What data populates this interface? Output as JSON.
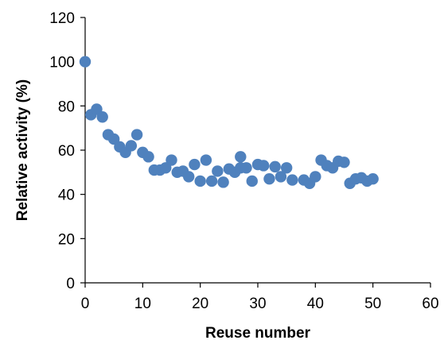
{
  "chart_data": {
    "type": "scatter",
    "title": "",
    "xlabel": "Reuse number",
    "ylabel": "Relative activity (%)",
    "xlim": [
      0,
      60
    ],
    "ylim": [
      0,
      120
    ],
    "x_ticks": [
      "0",
      "10",
      "20",
      "30",
      "40",
      "50",
      "60"
    ],
    "y_ticks": [
      "0",
      "20",
      "40",
      "60",
      "80",
      "100",
      "120"
    ],
    "grid": false,
    "legend": "none",
    "marker_color": "#4f81bd",
    "series": [
      {
        "points": [
          [
            0,
            100
          ],
          [
            1,
            76
          ],
          [
            2,
            78.5
          ],
          [
            3,
            75
          ],
          [
            4,
            67
          ],
          [
            5,
            65
          ],
          [
            6,
            61.5
          ],
          [
            7,
            59
          ],
          [
            8,
            62
          ],
          [
            9,
            67
          ],
          [
            10,
            59
          ],
          [
            11,
            57
          ],
          [
            12,
            51
          ],
          [
            13,
            51
          ],
          [
            14,
            52
          ],
          [
            15,
            55.5
          ],
          [
            16,
            50
          ],
          [
            17,
            50.5
          ],
          [
            18,
            48
          ],
          [
            19,
            53.5
          ],
          [
            20,
            46
          ],
          [
            21,
            55.5
          ],
          [
            22,
            46
          ],
          [
            23,
            50.5
          ],
          [
            24,
            45.5
          ],
          [
            25,
            51.5
          ],
          [
            26,
            50
          ],
          [
            27,
            57
          ],
          [
            27,
            52
          ],
          [
            28,
            52
          ],
          [
            29,
            46
          ],
          [
            30,
            53.5
          ],
          [
            31,
            53
          ],
          [
            32,
            47
          ],
          [
            33,
            52.5
          ],
          [
            34,
            48
          ],
          [
            35,
            52
          ],
          [
            36,
            46.5
          ],
          [
            38,
            46.5
          ],
          [
            39,
            45
          ],
          [
            40,
            48
          ],
          [
            41,
            55.5
          ],
          [
            42,
            53
          ],
          [
            43,
            52
          ],
          [
            44,
            55
          ],
          [
            45,
            54.5
          ],
          [
            46,
            45
          ],
          [
            47,
            47
          ],
          [
            48,
            47.5
          ],
          [
            49,
            46
          ],
          [
            50,
            47
          ]
        ]
      }
    ]
  }
}
